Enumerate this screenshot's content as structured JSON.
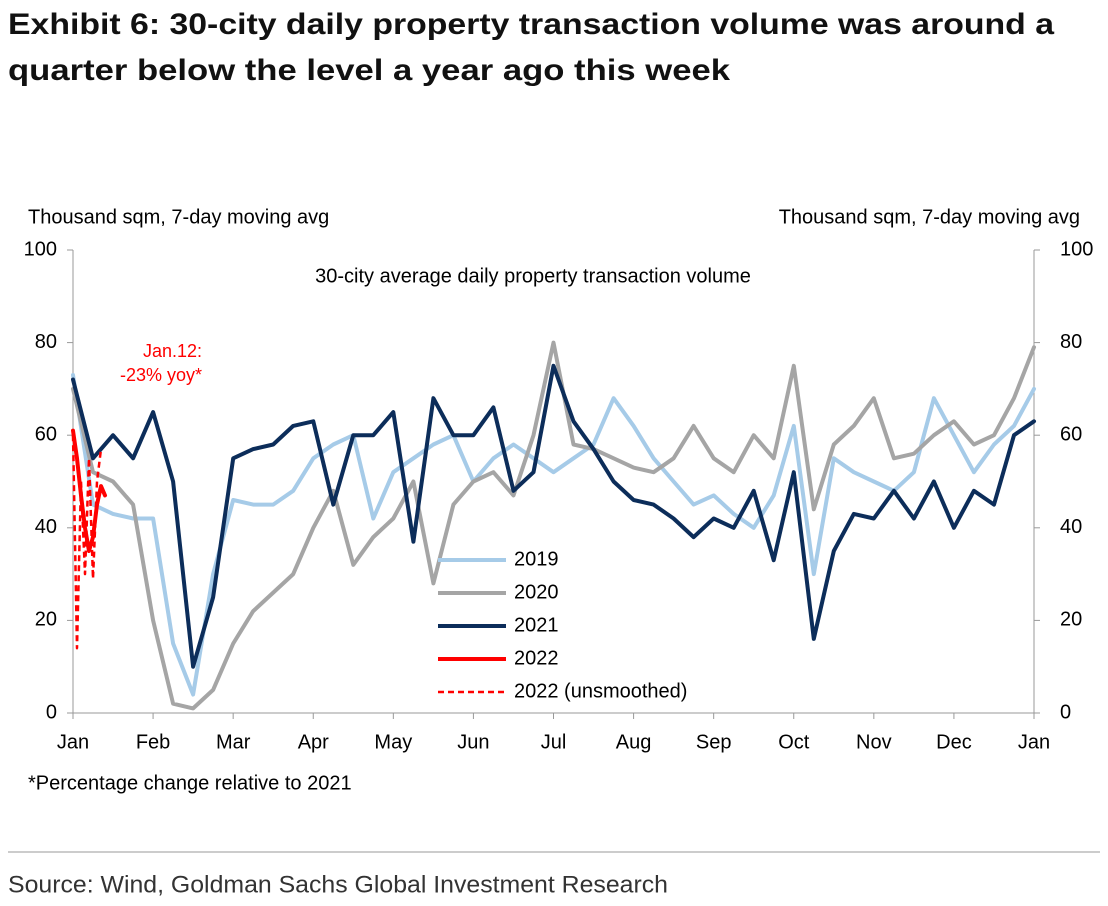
{
  "chart_data": {
    "type": "line",
    "title_lines": [
      "Exhibit 6: 30-city daily property transaction volume was around a",
      "quarter below the level a year ago this week"
    ],
    "subtitle": "30-city average daily property transaction volume",
    "y_label": "Thousand sqm, 7-day moving avg",
    "y2_label": "Thousand sqm, 7-day moving avg",
    "annotation_lines": [
      "Jan.12:",
      "-23% yoy*"
    ],
    "footnote": "*Percentage change relative to 2021",
    "source": "Source: Wind, Goldman Sachs Global Investment Research",
    "xlim": [
      0,
      12
    ],
    "xticks": [
      {
        "value": 0,
        "label": "Jan"
      },
      {
        "value": 1,
        "label": "Feb"
      },
      {
        "value": 2,
        "label": "Mar"
      },
      {
        "value": 3,
        "label": "Apr"
      },
      {
        "value": 4,
        "label": "May"
      },
      {
        "value": 5,
        "label": "Jun"
      },
      {
        "value": 6,
        "label": "Jul"
      },
      {
        "value": 7,
        "label": "Aug"
      },
      {
        "value": 8,
        "label": "Sep"
      },
      {
        "value": 9,
        "label": "Oct"
      },
      {
        "value": 10,
        "label": "Nov"
      },
      {
        "value": 11,
        "label": "Dec"
      },
      {
        "value": 12,
        "label": "Jan"
      }
    ],
    "ylim": [
      0,
      100
    ],
    "yticks": [
      0,
      20,
      40,
      60,
      80,
      100
    ],
    "y2lim": [
      0,
      100
    ],
    "y2ticks": [
      0,
      20,
      40,
      60,
      80,
      100
    ],
    "grid": false,
    "series": [
      {
        "name": "2019",
        "color": "#a6cbe8",
        "dashed": false,
        "x": [
          0,
          0.25,
          0.5,
          0.75,
          1,
          1.25,
          1.5,
          1.75,
          2,
          2.25,
          2.5,
          2.75,
          3,
          3.25,
          3.5,
          3.75,
          4,
          4.25,
          4.5,
          4.75,
          5,
          5.25,
          5.5,
          5.75,
          6,
          6.25,
          6.5,
          6.75,
          7,
          7.25,
          7.5,
          7.75,
          8,
          8.25,
          8.5,
          8.75,
          9,
          9.25,
          9.5,
          9.75,
          10,
          10.25,
          10.5,
          10.75,
          11,
          11.25,
          11.5,
          11.75,
          12
        ],
        "values": [
          73,
          45,
          43,
          42,
          42,
          15,
          4,
          30,
          46,
          45,
          45,
          48,
          55,
          58,
          60,
          42,
          52,
          55,
          58,
          60,
          50,
          55,
          58,
          55,
          52,
          55,
          58,
          68,
          62,
          55,
          50,
          45,
          47,
          43,
          40,
          47,
          62,
          30,
          55,
          52,
          50,
          48,
          52,
          68,
          60,
          52,
          58,
          62,
          70
        ]
      },
      {
        "name": "2020",
        "color": "#a5a5a5",
        "dashed": false,
        "x": [
          0,
          0.25,
          0.5,
          0.75,
          1,
          1.25,
          1.5,
          1.75,
          2,
          2.25,
          2.5,
          2.75,
          3,
          3.25,
          3.5,
          3.75,
          4,
          4.25,
          4.5,
          4.75,
          5,
          5.25,
          5.5,
          5.75,
          6,
          6.25,
          6.5,
          6.75,
          7,
          7.25,
          7.5,
          7.75,
          8,
          8.25,
          8.5,
          8.75,
          9,
          9.25,
          9.5,
          9.75,
          10,
          10.25,
          10.5,
          10.75,
          11,
          11.25,
          11.5,
          11.75,
          12
        ],
        "values": [
          70,
          52,
          50,
          45,
          20,
          2,
          1,
          5,
          15,
          22,
          26,
          30,
          40,
          48,
          32,
          38,
          42,
          50,
          28,
          45,
          50,
          52,
          47,
          60,
          80,
          58,
          57,
          55,
          53,
          52,
          55,
          62,
          55,
          52,
          60,
          55,
          75,
          44,
          58,
          62,
          68,
          55,
          56,
          60,
          63,
          58,
          60,
          68,
          79
        ]
      },
      {
        "name": "2021",
        "color": "#0c2d5a",
        "dashed": false,
        "x": [
          0,
          0.25,
          0.5,
          0.75,
          1,
          1.25,
          1.5,
          1.75,
          2,
          2.25,
          2.5,
          2.75,
          3,
          3.25,
          3.5,
          3.75,
          4,
          4.25,
          4.5,
          4.75,
          5,
          5.25,
          5.5,
          5.75,
          6,
          6.25,
          6.5,
          6.75,
          7,
          7.25,
          7.5,
          7.75,
          8,
          8.25,
          8.5,
          8.75,
          9,
          9.25,
          9.5,
          9.75,
          10,
          10.25,
          10.5,
          10.75,
          11,
          11.25,
          11.5,
          11.75,
          12
        ],
        "values": [
          72,
          55,
          60,
          55,
          65,
          50,
          10,
          25,
          55,
          57,
          58,
          62,
          63,
          45,
          60,
          60,
          65,
          37,
          68,
          60,
          60,
          66,
          48,
          52,
          75,
          63,
          57,
          50,
          46,
          45,
          42,
          38,
          42,
          40,
          48,
          33,
          52,
          16,
          35,
          43,
          42,
          48,
          42,
          50,
          40,
          48,
          45,
          60,
          63
        ]
      },
      {
        "name": "2022",
        "color": "#ff0000",
        "dashed": false,
        "x": [
          0,
          0.05,
          0.1,
          0.15,
          0.2,
          0.25,
          0.3,
          0.35,
          0.4
        ],
        "values": [
          61,
          55,
          47,
          40,
          35,
          38,
          45,
          49,
          47
        ]
      },
      {
        "name": "2022 (unsmoothed)",
        "color": "#ff0000",
        "dashed": true,
        "x": [
          0,
          0.05,
          0.1,
          0.15,
          0.2,
          0.25,
          0.3,
          0.35
        ],
        "values": [
          60,
          14,
          50,
          30,
          55,
          29,
          50,
          57
        ]
      }
    ]
  }
}
